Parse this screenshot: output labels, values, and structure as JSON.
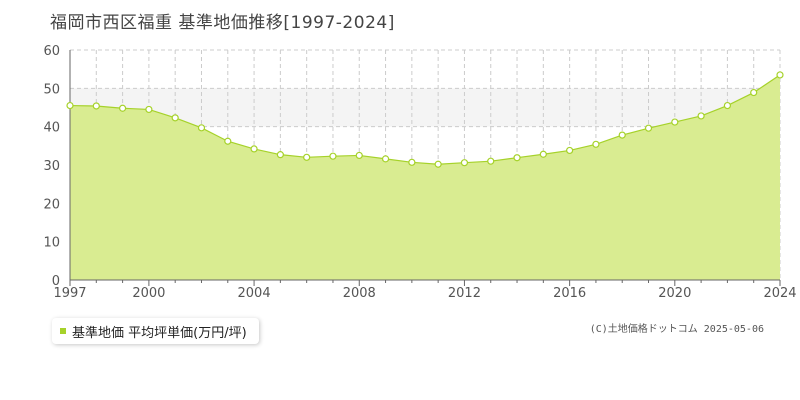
{
  "title": "福岡市西区福重 基準地価推移[1997-2024]",
  "legend_label": "基準地価 平均坪単価(万円/坪)",
  "copyright": "(C)土地価格ドットコム 2025-05-06",
  "colors": {
    "fill": "#d9ec91",
    "line": "#a6d22a",
    "band": "#f4f4f4",
    "grid": "#cccccc",
    "axis": "#666666",
    "marker_fill": "#ffffff"
  },
  "chart_data": {
    "type": "area",
    "title": "福岡市西区福重 基準地価推移[1997-2024]",
    "xlabel": "",
    "ylabel": "",
    "xlim": [
      1997,
      2024
    ],
    "ylim": [
      0,
      60
    ],
    "xticks": [
      1997,
      2000,
      2004,
      2008,
      2012,
      2016,
      2020,
      2024
    ],
    "yticks": [
      0,
      10,
      20,
      30,
      40,
      50,
      60
    ],
    "highlight_band": [
      40,
      50
    ],
    "grid": true,
    "series": [
      {
        "name": "基準地価 平均坪単価(万円/坪)",
        "x": [
          1997,
          1998,
          1999,
          2000,
          2001,
          2002,
          2003,
          2004,
          2005,
          2006,
          2007,
          2008,
          2009,
          2010,
          2011,
          2012,
          2013,
          2014,
          2015,
          2016,
          2017,
          2018,
          2019,
          2020,
          2021,
          2022,
          2023,
          2024
        ],
        "y": [
          45.5,
          45.4,
          44.8,
          44.5,
          42.3,
          39.7,
          36.2,
          34.2,
          32.7,
          32.0,
          32.3,
          32.5,
          31.6,
          30.7,
          30.2,
          30.6,
          31.0,
          31.9,
          32.8,
          33.8,
          35.4,
          37.8,
          39.6,
          41.2,
          42.8,
          45.5,
          48.9,
          53.5
        ]
      }
    ]
  }
}
